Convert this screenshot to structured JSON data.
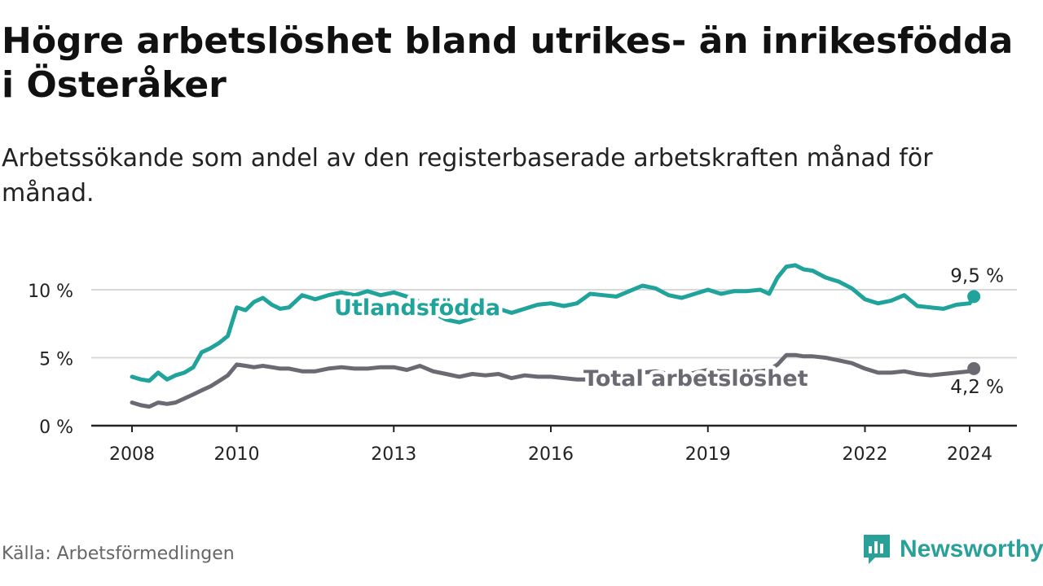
{
  "title": "Högre arbetslöshet bland utrikes- än inrikesfödda i Österåker",
  "subtitle": "Arbetssökande som andel av den registerbaserade arbetskraften månad för månad.",
  "source": "Källa: Arbetsförmedlingen",
  "brand": {
    "name": "Newsworthy",
    "icon": "newsworthy-logo-icon",
    "color": "#2aa198"
  },
  "chart_data": {
    "type": "line",
    "title": "Högre arbetslöshet bland utrikes- än inrikesfödda i Österåker",
    "xlabel": "",
    "ylabel": "",
    "xlim": [
      2008,
      2024.33
    ],
    "ylim": [
      0,
      12
    ],
    "x_ticks": [
      2008,
      2010,
      2013,
      2016,
      2019,
      2022,
      2024
    ],
    "x_tick_labels": [
      "2008",
      "2010",
      "2013",
      "2016",
      "2019",
      "2022",
      "2024"
    ],
    "y_ticks": [
      0,
      5,
      10
    ],
    "y_tick_labels": [
      "0 %",
      "5 %",
      "10 %"
    ],
    "grid": true,
    "series": [
      {
        "name": "Utlandsfödda",
        "color": "#20a39a",
        "end_label": "9,5 %",
        "points": [
          [
            2008.0,
            3.6
          ],
          [
            2008.17,
            3.4
          ],
          [
            2008.33,
            3.3
          ],
          [
            2008.5,
            3.9
          ],
          [
            2008.67,
            3.4
          ],
          [
            2008.83,
            3.7
          ],
          [
            2009.0,
            3.9
          ],
          [
            2009.17,
            4.3
          ],
          [
            2009.33,
            5.4
          ],
          [
            2009.5,
            5.7
          ],
          [
            2009.67,
            6.1
          ],
          [
            2009.83,
            6.6
          ],
          [
            2010.0,
            8.7
          ],
          [
            2010.17,
            8.5
          ],
          [
            2010.33,
            9.1
          ],
          [
            2010.5,
            9.4
          ],
          [
            2010.67,
            8.9
          ],
          [
            2010.83,
            8.6
          ],
          [
            2011.0,
            8.7
          ],
          [
            2011.25,
            9.6
          ],
          [
            2011.5,
            9.3
          ],
          [
            2011.75,
            9.6
          ],
          [
            2012.0,
            9.8
          ],
          [
            2012.25,
            9.6
          ],
          [
            2012.5,
            9.9
          ],
          [
            2012.75,
            9.6
          ],
          [
            2013.0,
            9.8
          ],
          [
            2013.25,
            9.5
          ],
          [
            2013.5,
            9.1
          ],
          [
            2013.75,
            8.3
          ],
          [
            2014.0,
            7.8
          ],
          [
            2014.25,
            7.6
          ],
          [
            2014.5,
            7.9
          ],
          [
            2014.75,
            8.2
          ],
          [
            2015.0,
            8.6
          ],
          [
            2015.25,
            8.3
          ],
          [
            2015.5,
            8.6
          ],
          [
            2015.75,
            8.9
          ],
          [
            2016.0,
            9.0
          ],
          [
            2016.25,
            8.8
          ],
          [
            2016.5,
            9.0
          ],
          [
            2016.75,
            9.7
          ],
          [
            2017.0,
            9.6
          ],
          [
            2017.25,
            9.5
          ],
          [
            2017.5,
            9.9
          ],
          [
            2017.75,
            10.3
          ],
          [
            2018.0,
            10.1
          ],
          [
            2018.25,
            9.6
          ],
          [
            2018.5,
            9.4
          ],
          [
            2018.75,
            9.7
          ],
          [
            2019.0,
            10.0
          ],
          [
            2019.25,
            9.7
          ],
          [
            2019.5,
            9.9
          ],
          [
            2019.75,
            9.9
          ],
          [
            2020.0,
            10.0
          ],
          [
            2020.17,
            9.7
          ],
          [
            2020.33,
            10.9
          ],
          [
            2020.5,
            11.7
          ],
          [
            2020.67,
            11.8
          ],
          [
            2020.83,
            11.5
          ],
          [
            2021.0,
            11.4
          ],
          [
            2021.25,
            10.9
          ],
          [
            2021.5,
            10.6
          ],
          [
            2021.75,
            10.1
          ],
          [
            2022.0,
            9.3
          ],
          [
            2022.25,
            9.0
          ],
          [
            2022.5,
            9.2
          ],
          [
            2022.75,
            9.6
          ],
          [
            2023.0,
            8.8
          ],
          [
            2023.25,
            8.7
          ],
          [
            2023.5,
            8.6
          ],
          [
            2023.75,
            8.9
          ],
          [
            2024.0,
            9.0
          ],
          [
            2024.08,
            9.5
          ]
        ]
      },
      {
        "name": "Total arbetslöshet",
        "color": "#6b6a72",
        "end_label": "4,2 %",
        "points": [
          [
            2008.0,
            1.7
          ],
          [
            2008.17,
            1.5
          ],
          [
            2008.33,
            1.4
          ],
          [
            2008.5,
            1.7
          ],
          [
            2008.67,
            1.6
          ],
          [
            2008.83,
            1.7
          ],
          [
            2009.0,
            2.0
          ],
          [
            2009.17,
            2.3
          ],
          [
            2009.33,
            2.6
          ],
          [
            2009.5,
            2.9
          ],
          [
            2009.67,
            3.3
          ],
          [
            2009.83,
            3.7
          ],
          [
            2010.0,
            4.5
          ],
          [
            2010.17,
            4.4
          ],
          [
            2010.33,
            4.3
          ],
          [
            2010.5,
            4.4
          ],
          [
            2010.67,
            4.3
          ],
          [
            2010.83,
            4.2
          ],
          [
            2011.0,
            4.2
          ],
          [
            2011.25,
            4.0
          ],
          [
            2011.5,
            4.0
          ],
          [
            2011.75,
            4.2
          ],
          [
            2012.0,
            4.3
          ],
          [
            2012.25,
            4.2
          ],
          [
            2012.5,
            4.2
          ],
          [
            2012.75,
            4.3
          ],
          [
            2013.0,
            4.3
          ],
          [
            2013.25,
            4.1
          ],
          [
            2013.5,
            4.4
          ],
          [
            2013.75,
            4.0
          ],
          [
            2014.0,
            3.8
          ],
          [
            2014.25,
            3.6
          ],
          [
            2014.5,
            3.8
          ],
          [
            2014.75,
            3.7
          ],
          [
            2015.0,
            3.8
          ],
          [
            2015.25,
            3.5
          ],
          [
            2015.5,
            3.7
          ],
          [
            2015.75,
            3.6
          ],
          [
            2016.0,
            3.6
          ],
          [
            2016.25,
            3.5
          ],
          [
            2016.5,
            3.4
          ],
          [
            2016.75,
            3.4
          ],
          [
            2017.0,
            3.5
          ],
          [
            2017.25,
            3.7
          ],
          [
            2017.5,
            3.8
          ],
          [
            2017.75,
            3.9
          ],
          [
            2018.0,
            4.0
          ],
          [
            2018.25,
            3.8
          ],
          [
            2018.5,
            3.7
          ],
          [
            2018.75,
            3.9
          ],
          [
            2019.0,
            4.1
          ],
          [
            2019.25,
            4.0
          ],
          [
            2019.5,
            4.0
          ],
          [
            2019.75,
            4.0
          ],
          [
            2020.0,
            4.0
          ],
          [
            2020.17,
            4.1
          ],
          [
            2020.33,
            4.5
          ],
          [
            2020.5,
            5.2
          ],
          [
            2020.67,
            5.2
          ],
          [
            2020.83,
            5.1
          ],
          [
            2021.0,
            5.1
          ],
          [
            2021.25,
            5.0
          ],
          [
            2021.5,
            4.8
          ],
          [
            2021.75,
            4.6
          ],
          [
            2022.0,
            4.2
          ],
          [
            2022.25,
            3.9
          ],
          [
            2022.5,
            3.9
          ],
          [
            2022.75,
            4.0
          ],
          [
            2023.0,
            3.8
          ],
          [
            2023.25,
            3.7
          ],
          [
            2023.5,
            3.8
          ],
          [
            2023.75,
            3.9
          ],
          [
            2024.0,
            4.0
          ],
          [
            2024.08,
            4.2
          ]
        ]
      }
    ]
  }
}
